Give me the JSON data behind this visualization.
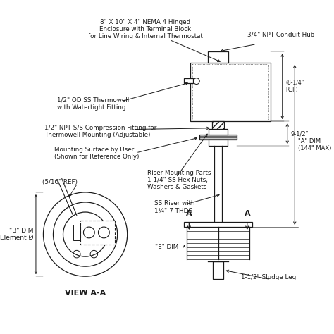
{
  "bg_color": "#ffffff",
  "line_color": "#1a1a1a",
  "texts": {
    "enclosure": "8\" X 10\" X 4\" NEMA 4 Hinged\nEnclosure with Terminal Block\nfor Line Wiring & Internal Thermostat",
    "conduit": "3/4\" NPT Conduit Hub",
    "thermowell": "1/2\" OD SS Thermowell\nwith Watertight Fitting",
    "compression": "1/2\" NPT S/S Compression Fitting for\nThermowell Mounting (Adjustable)",
    "mounting": "Mounting Surface by User\n(Shown for Reference Only)",
    "riser_parts": "Riser Mounting Parts\n1-1/4\" SS Hex Nuts,\nWashers & Gaskets",
    "riser": "SS Riser with\n1¼\"-7 THDS",
    "a_dim": "\"A\" DIM\n(144\" MAX)",
    "ref_8": "(8-1/4\"\nREF)",
    "nine_half": "9-1/2\"",
    "ref_5_16": "(5/16\" REF)",
    "b_dim": "\"B\" DIM\nElement Ø",
    "e_dim": "\"E\" DIM",
    "sludge": "1-1/2\" Sludge Leg",
    "view_aa": "VIEW A-A",
    "label_A_left": "A",
    "label_A_right": "A"
  }
}
